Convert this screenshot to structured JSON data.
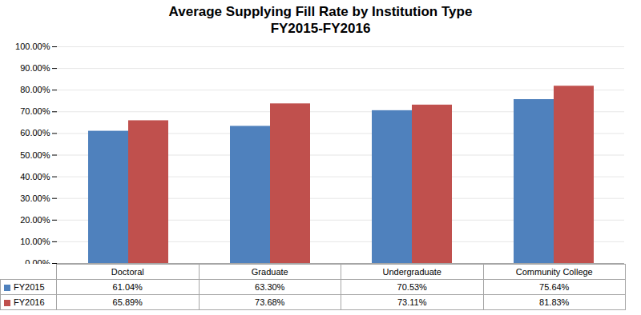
{
  "chart_data": {
    "type": "bar",
    "title": "Average Supplying Fill Rate by Institution Type",
    "subtitle": "FY2015-FY2016",
    "categories": [
      "Doctoral",
      "Graduate",
      "Undergraduate",
      "Community College"
    ],
    "series": [
      {
        "name": "FY2015",
        "color": "#4f81bd",
        "values": [
          61.04,
          63.3,
          70.53,
          75.64
        ],
        "value_labels": [
          "61.04%",
          "63.30%",
          "70.53%",
          "75.64%"
        ]
      },
      {
        "name": "FY2016",
        "color": "#c0504d",
        "values": [
          65.89,
          73.68,
          73.11,
          81.83
        ],
        "value_labels": [
          "65.89%",
          "73.68%",
          "73.11%",
          "81.83%"
        ]
      }
    ],
    "ylim": [
      0,
      100
    ],
    "yticks": [
      {
        "value": 0,
        "label": "0.00%"
      },
      {
        "value": 10,
        "label": "10.00%"
      },
      {
        "value": 20,
        "label": "20.00%"
      },
      {
        "value": 30,
        "label": "30.00%"
      },
      {
        "value": 40,
        "label": "40.00%"
      },
      {
        "value": 50,
        "label": "50.00%"
      },
      {
        "value": 60,
        "label": "60.00%"
      },
      {
        "value": 70,
        "label": "70.00%"
      },
      {
        "value": 80,
        "label": "80.00%"
      },
      {
        "value": 90,
        "label": "90.00%"
      },
      {
        "value": 100,
        "label": "100.00%"
      }
    ],
    "grid": true,
    "legend": "bottom"
  }
}
